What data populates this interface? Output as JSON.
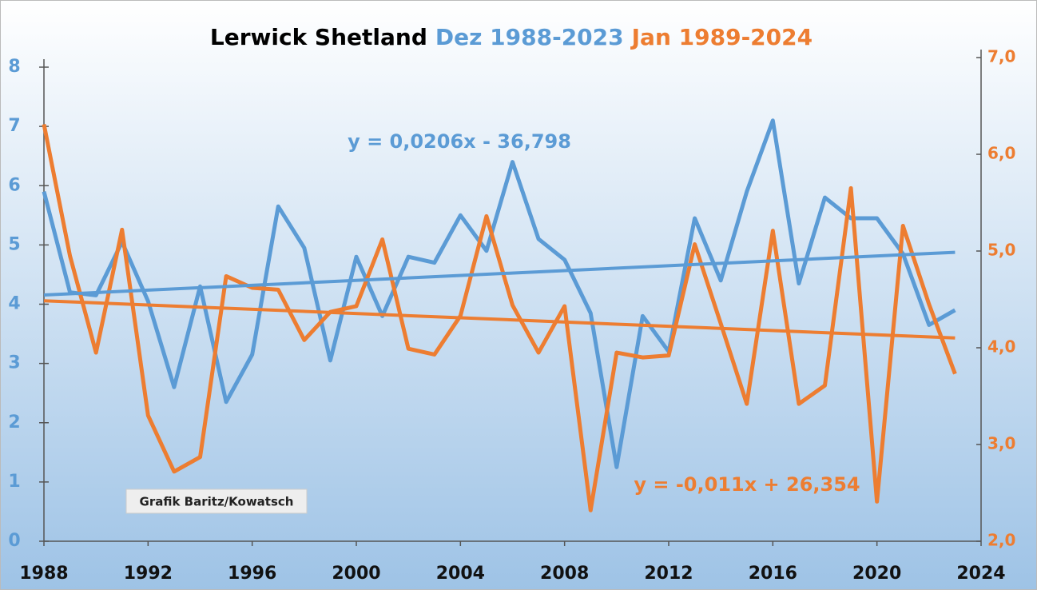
{
  "chart_data": {
    "type": "line",
    "title": "Lerwick Shetland",
    "source": "Grafik Baritz/Kowatsch",
    "x": [
      1988,
      1989,
      1990,
      1991,
      1992,
      1993,
      1994,
      1995,
      1996,
      1997,
      1998,
      1999,
      2000,
      2001,
      2002,
      2003,
      2004,
      2005,
      2006,
      2007,
      2008,
      2009,
      2010,
      2011,
      2012,
      2013,
      2014,
      2015,
      2016,
      2017,
      2018,
      2019,
      2020,
      2021,
      2022,
      2023
    ],
    "series": [
      {
        "name": "Dez 1988-2023",
        "color": "#5b9bd5",
        "axis": "y",
        "values": [
          5.9,
          4.2,
          4.15,
          5.05,
          4.05,
          2.6,
          4.3,
          2.35,
          3.15,
          5.65,
          4.95,
          3.05,
          4.8,
          3.8,
          4.8,
          4.7,
          5.5,
          4.9,
          6.4,
          5.1,
          4.75,
          3.85,
          1.25,
          3.8,
          3.2,
          5.45,
          4.4,
          5.9,
          7.1,
          4.35,
          5.8,
          5.45,
          5.45,
          4.85,
          3.65,
          3.9
        ],
        "trend": {
          "label": "y = 0,0206x - 36,798",
          "slope": 0.0206,
          "intercept": -36.798
        }
      },
      {
        "name": "Jan 1989-2024",
        "color": "#ed7d31",
        "axis": "y2",
        "values": [
          6.31,
          4.95,
          3.95,
          5.22,
          3.3,
          2.72,
          2.87,
          4.74,
          4.62,
          4.6,
          4.08,
          4.37,
          4.43,
          5.12,
          3.99,
          3.93,
          4.33,
          5.36,
          4.44,
          3.95,
          4.43,
          2.32,
          3.95,
          3.9,
          3.92,
          5.07,
          4.25,
          3.42,
          5.21,
          3.42,
          3.61,
          5.65,
          2.41,
          5.26,
          4.45,
          3.73
        ],
        "trend": {
          "label": "y = -0,011x + 26,354",
          "slope": -0.011,
          "intercept": 26.354
        }
      }
    ],
    "xlim": [
      1988,
      2024
    ],
    "xticks": [
      1988,
      1992,
      1996,
      2000,
      2004,
      2008,
      2012,
      2016,
      2020,
      2024
    ],
    "ylim": [
      0,
      8
    ],
    "yticks": [
      0,
      1,
      2,
      3,
      4,
      5,
      6,
      7,
      8
    ],
    "y2lim": [
      2,
      7
    ],
    "y2ticks": [
      {
        "value": 2,
        "label": "2,0"
      },
      {
        "value": 3,
        "label": "3,0"
      },
      {
        "value": 4,
        "label": "4,0"
      },
      {
        "value": 5,
        "label": "5,0"
      },
      {
        "value": 6,
        "label": "6,0"
      },
      {
        "value": 7,
        "label": "7,0"
      }
    ]
  }
}
